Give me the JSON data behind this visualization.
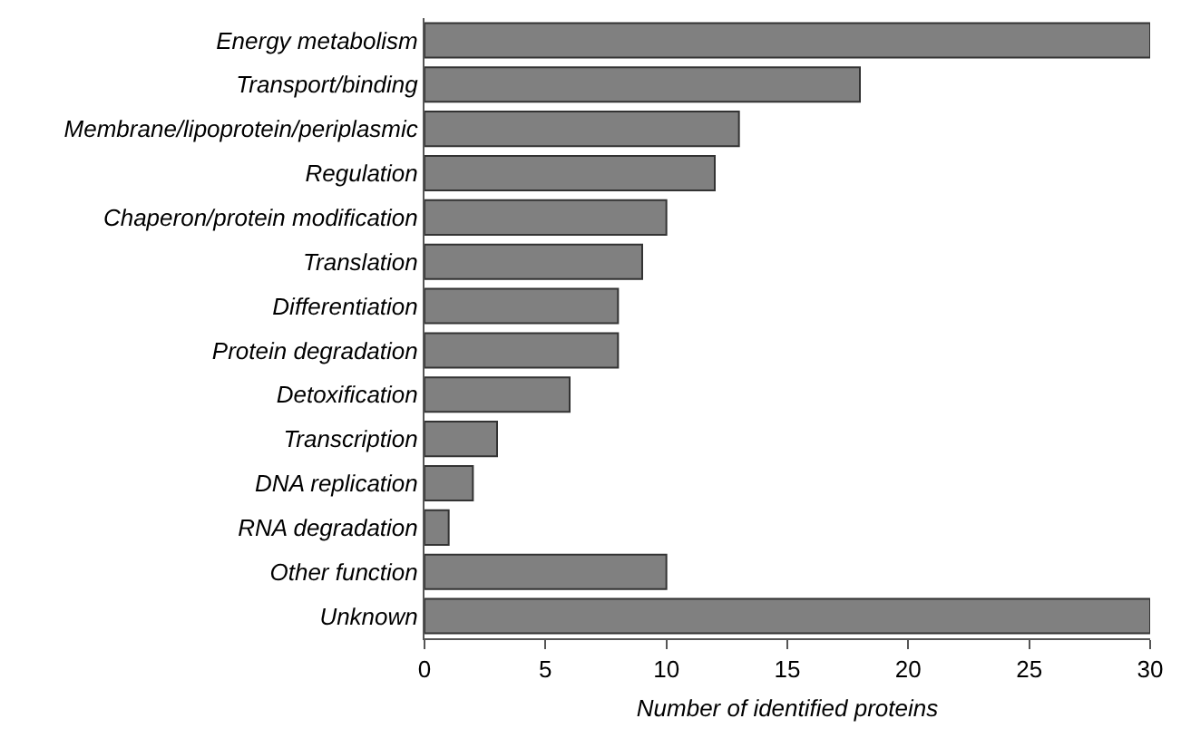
{
  "chart_data": {
    "type": "bar",
    "orientation": "horizontal",
    "xlabel": "Number of identified proteins",
    "categories": [
      "Energy metabolism",
      "Transport/binding",
      "Membrane/lipoprotein/periplasmic",
      "Regulation",
      "Chaperon/protein modification",
      "Translation",
      "Differentiation",
      "Protein degradation",
      "Detoxification",
      "Transcription",
      "DNA replication",
      "RNA degradation",
      "Other function",
      "Unknown"
    ],
    "values": [
      30,
      18,
      13,
      12,
      10,
      9,
      8,
      8,
      6,
      3,
      2,
      1,
      10,
      30
    ],
    "color": "#808080",
    "xlim": [
      0,
      30
    ],
    "xticks": [
      0,
      5,
      10,
      15,
      20,
      25,
      30
    ],
    "grid": false
  }
}
